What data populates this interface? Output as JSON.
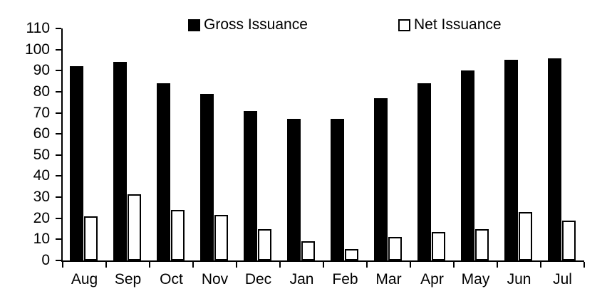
{
  "chart_data": {
    "type": "bar",
    "title": "",
    "xlabel": "",
    "ylabel": "",
    "categories": [
      "Aug",
      "Sep",
      "Oct",
      "Nov",
      "Dec",
      "Jan",
      "Feb",
      "Mar",
      "Apr",
      "May",
      "Jun",
      "Jul"
    ],
    "series": [
      {
        "name": "Gross Issuance",
        "swatch": "filled-square",
        "fill": "#000000",
        "outline": "#000000",
        "values": [
          92,
          94,
          84,
          79,
          71,
          67,
          67,
          77,
          84,
          90,
          95,
          96
        ]
      },
      {
        "name": "Net Issuance",
        "swatch": "hollow-square",
        "fill": "#ffffff",
        "outline": "#000000",
        "values": [
          21,
          31.5,
          24,
          21.5,
          15,
          9,
          5.5,
          11,
          13.5,
          15,
          23,
          19
        ]
      }
    ],
    "ylim": [
      0,
      110
    ],
    "ytick_step": 10,
    "ytick_labels": [
      "0",
      "10",
      "20",
      "30",
      "40",
      "50",
      "60",
      "70",
      "80",
      "90",
      "100",
      "110"
    ],
    "grid": false,
    "legend_position": "top",
    "axis_color": "#000000",
    "text_color": "#000000",
    "background": "#ffffff"
  }
}
